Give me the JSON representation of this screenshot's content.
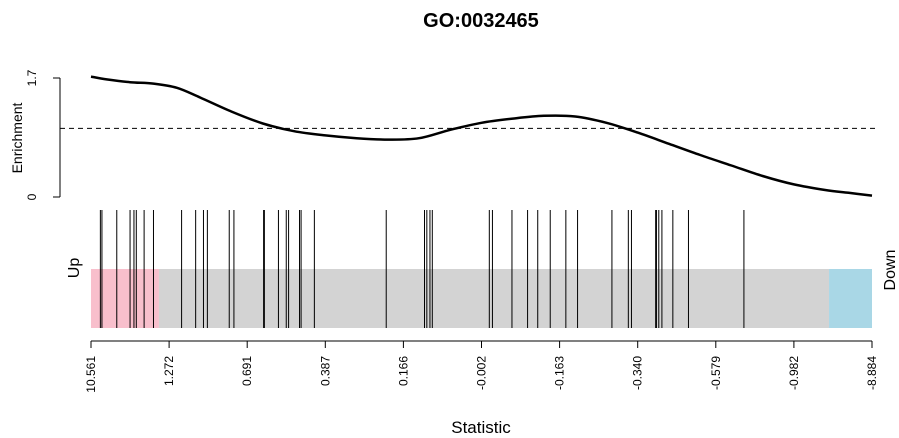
{
  "chart_data": {
    "type": "line",
    "title": "GO:0032465",
    "xlabel": "Statistic",
    "ylabel": "Enrichment",
    "y_ticks": [
      "0",
      "1.7"
    ],
    "ylim": [
      0,
      1.7
    ],
    "x_ticks": [
      "10.561",
      "1.272",
      "0.691",
      "0.387",
      "0.166",
      "-0.002",
      "-0.163",
      "-0.340",
      "-0.579",
      "-0.982",
      "-8.884"
    ],
    "reference_line": {
      "y": 0.98,
      "style": "dashed"
    },
    "enrichment_curve": {
      "rank_fraction": [
        0.0,
        0.02,
        0.05,
        0.08,
        0.11,
        0.14,
        0.18,
        0.22,
        0.26,
        0.3,
        0.34,
        0.38,
        0.42,
        0.46,
        0.5,
        0.54,
        0.58,
        0.62,
        0.66,
        0.7,
        0.74,
        0.78,
        0.82,
        0.86,
        0.9,
        0.94,
        0.97,
        1.0
      ],
      "enrichment": [
        1.72,
        1.68,
        1.64,
        1.62,
        1.56,
        1.42,
        1.22,
        1.05,
        0.94,
        0.88,
        0.84,
        0.82,
        0.84,
        0.96,
        1.06,
        1.12,
        1.16,
        1.15,
        1.06,
        0.92,
        0.76,
        0.6,
        0.45,
        0.3,
        0.18,
        0.1,
        0.06,
        0.02
      ]
    },
    "gene_rank_fractions": [
      0.012,
      0.014,
      0.033,
      0.05,
      0.055,
      0.058,
      0.068,
      0.08,
      0.116,
      0.134,
      0.144,
      0.149,
      0.177,
      0.183,
      0.221,
      0.222,
      0.24,
      0.25,
      0.253,
      0.267,
      0.269,
      0.286,
      0.378,
      0.427,
      0.43,
      0.434,
      0.437,
      0.51,
      0.514,
      0.539,
      0.559,
      0.572,
      0.588,
      0.608,
      0.623,
      0.667,
      0.688,
      0.692,
      0.723,
      0.724,
      0.727,
      0.731,
      0.745,
      0.765,
      0.836
    ],
    "regions": [
      {
        "label": "Up",
        "color": "#f8bfcc",
        "from": 0.0,
        "to": 0.087
      },
      {
        "label": "",
        "color": "#d3d3d3",
        "from": 0.087,
        "to": 0.945
      },
      {
        "label": "Down",
        "color": "#a9d7e6",
        "from": 0.945,
        "to": 1.0
      }
    ],
    "grid": false
  }
}
